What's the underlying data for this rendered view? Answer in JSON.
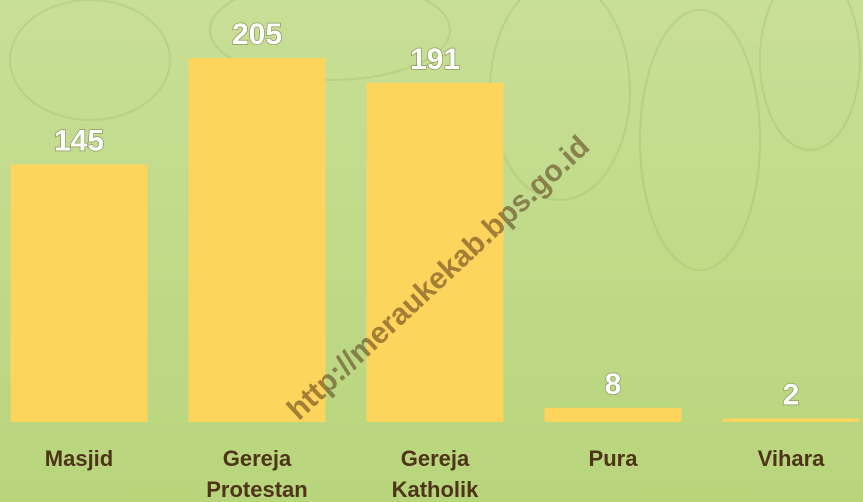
{
  "chart_data": {
    "type": "bar",
    "categories": [
      "Masjid",
      "Gereja Protestan",
      "Gereja Katholik",
      "Pura",
      "Vihara"
    ],
    "values": [
      145,
      205,
      191,
      8,
      2
    ],
    "color": "#fdd45c",
    "watermark": "http://meraukekab.bps.go.id"
  }
}
